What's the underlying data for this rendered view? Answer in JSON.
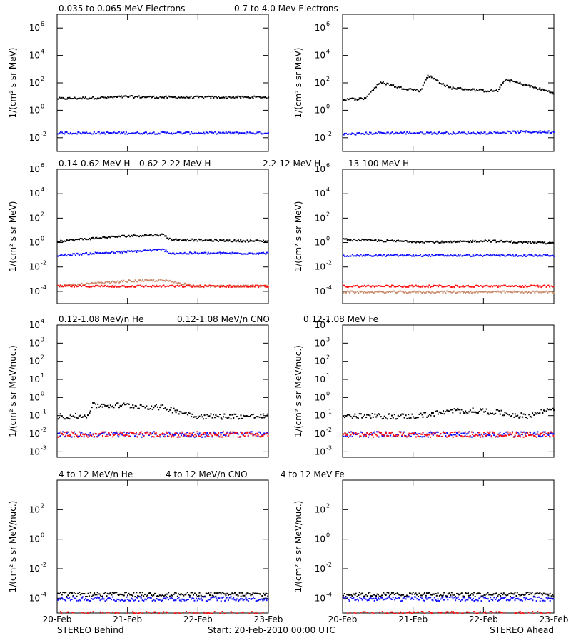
{
  "colors": {
    "black": "#000000",
    "blue": "#1010ff",
    "tan": "#c98b6b",
    "red": "#ff1010"
  },
  "rows": [
    {
      "labels": [
        {
          "text": "0.035 to 0.065 MeV Electrons",
          "color": "#000000"
        },
        {
          "text": "0.7 to 4.0 Mev Electrons",
          "color": "#1010ff"
        }
      ],
      "ylabel": "1/(cm² s sr MeV)",
      "ylim_exp": [
        -3,
        7
      ],
      "ticks": [
        {
          "base": "10",
          "exp": "6",
          "e": 6
        },
        {
          "base": "10",
          "exp": "4",
          "e": 4
        },
        {
          "base": "10",
          "exp": "2",
          "e": 2
        },
        {
          "base": "10",
          "exp": "0",
          "e": 0
        },
        {
          "base": "10",
          "exp": "-2",
          "e": -2
        }
      ]
    },
    {
      "labels": [
        {
          "text": "0.14-0.62 MeV H",
          "color": "#000000"
        },
        {
          "text": "0.62-2.22 MeV H",
          "color": "#1010ff"
        },
        {
          "text": "2.2-12 MeV H",
          "color": "#c98b6b"
        },
        {
          "text": "13-100 MeV H",
          "color": "#ff1010"
        }
      ],
      "ylabel": "1/(cm² s sr MeV)",
      "ylim_exp": [
        -5,
        6
      ],
      "ticks": [
        {
          "base": "10",
          "exp": "6",
          "e": 6
        },
        {
          "base": "10",
          "exp": "4",
          "e": 4
        },
        {
          "base": "10",
          "exp": "2",
          "e": 2
        },
        {
          "base": "10",
          "exp": "0",
          "e": 0
        },
        {
          "base": "10",
          "exp": "-2",
          "e": -2
        },
        {
          "base": "10",
          "exp": "-4",
          "e": -4
        }
      ]
    },
    {
      "labels": [
        {
          "text": "0.12-1.08 MeV/n He",
          "color": "#000000"
        },
        {
          "text": "0.12-1.08 MeV/n CNO",
          "color": "#1010ff"
        },
        {
          "text": "0.12-1.08 MeV Fe",
          "color": "#ff1010"
        }
      ],
      "ylabel": "1/(cm² s sr MeV/nuc.)",
      "ylim_exp": [
        -3.3,
        4
      ],
      "ticks": [
        {
          "base": "10",
          "exp": "4",
          "e": 4
        },
        {
          "base": "10",
          "exp": "3",
          "e": 3
        },
        {
          "base": "10",
          "exp": "2",
          "e": 2
        },
        {
          "base": "10",
          "exp": "1",
          "e": 1
        },
        {
          "base": "10",
          "exp": "0",
          "e": 0
        },
        {
          "base": "10",
          "exp": "-1",
          "e": -1
        },
        {
          "base": "10",
          "exp": "-2",
          "e": -2
        },
        {
          "base": "10",
          "exp": "-3",
          "e": -3
        }
      ]
    },
    {
      "labels": [
        {
          "text": "4 to 12 MeV/n He",
          "color": "#000000"
        },
        {
          "text": "4 to 12 MeV/n CNO",
          "color": "#1010ff"
        },
        {
          "text": "4 to 12 MeV Fe",
          "color": "#ff1010"
        }
      ],
      "ylabel": "1/(cm² s sr MeV/nuc.)",
      "ylim_exp": [
        -5,
        4
      ],
      "ticks": [
        {
          "base": "10",
          "exp": "2",
          "e": 2
        },
        {
          "base": "10",
          "exp": "0",
          "e": 0
        },
        {
          "base": "10",
          "exp": "-2",
          "e": -2
        },
        {
          "base": "10",
          "exp": "-4",
          "e": -4
        }
      ]
    }
  ],
  "x_ticks": [
    "20-Feb",
    "21-Feb",
    "22-Feb",
    "23-Feb"
  ],
  "footer": {
    "left": "STEREO Behind",
    "center": "Start: 20-Feb-2010 00:00 UTC",
    "right": "STEREO Ahead"
  },
  "chart_data": [
    {
      "type": "scatter",
      "panel": "electrons-behind",
      "xlim_days": [
        0,
        3
      ],
      "ylog": true,
      "series": [
        {
          "name": "0.035 to 0.065 MeV Electrons",
          "color": "#000000",
          "x": [
            0,
            0.5,
            1,
            1.5,
            2,
            2.5,
            3
          ],
          "y": [
            8,
            9,
            11,
            10,
            10,
            10,
            10
          ]
        },
        {
          "name": "0.7 to 4.0 Mev Electrons",
          "color": "#1010ff",
          "x": [
            0,
            0.5,
            1,
            1.5,
            2,
            2.5,
            3
          ],
          "y": [
            0.025,
            0.025,
            0.025,
            0.025,
            0.025,
            0.025,
            0.025
          ]
        }
      ]
    },
    {
      "type": "scatter",
      "panel": "electrons-ahead",
      "xlim_days": [
        0,
        3
      ],
      "ylog": true,
      "series": [
        {
          "name": "0.035 to 0.065 MeV Electrons",
          "color": "#000000",
          "x": [
            0,
            0.3,
            0.5,
            0.55,
            0.8,
            1.1,
            1.2,
            1.5,
            2,
            2.2,
            2.3,
            3
          ],
          "y": [
            7,
            8,
            90,
            120,
            50,
            30,
            400,
            50,
            30,
            30,
            200,
            20
          ]
        },
        {
          "name": "0.7 to 4.0 Mev Electrons",
          "color": "#1010ff",
          "x": [
            0,
            0.5,
            1,
            1.5,
            2,
            2.5,
            3
          ],
          "y": [
            0.02,
            0.025,
            0.025,
            0.025,
            0.025,
            0.03,
            0.03
          ]
        }
      ]
    },
    {
      "type": "scatter",
      "panel": "protons-behind",
      "xlim_days": [
        0,
        3
      ],
      "ylog": true,
      "series": [
        {
          "name": "0.14-0.62 MeV H",
          "color": "#000000",
          "x": [
            0,
            0.5,
            1,
            1.5,
            1.6,
            2,
            2.5,
            3
          ],
          "y": [
            1.5,
            2.5,
            4,
            5,
            2,
            1.8,
            1.6,
            1.5
          ]
        },
        {
          "name": "0.62-2.22 MeV H",
          "color": "#1010ff",
          "x": [
            0,
            0.5,
            1,
            1.5,
            1.6,
            2,
            2.5,
            3
          ],
          "y": [
            0.1,
            0.15,
            0.2,
            0.3,
            0.15,
            0.15,
            0.15,
            0.15
          ]
        },
        {
          "name": "2.2-12 MeV H",
          "color": "#c98b6b",
          "x": [
            0,
            0.5,
            1,
            1.5,
            2,
            3
          ],
          "y": [
            0.0003,
            0.0005,
            0.0008,
            0.0009,
            0.0003,
            0.0003
          ]
        },
        {
          "name": "13-100 MeV H",
          "color": "#ff1010",
          "x": [
            0,
            1,
            2,
            3
          ],
          "y": [
            0.0003,
            0.0003,
            0.0003,
            0.0003
          ]
        }
      ]
    },
    {
      "type": "scatter",
      "panel": "protons-ahead",
      "xlim_days": [
        0,
        3
      ],
      "ylog": true,
      "series": [
        {
          "name": "0.14-0.62 MeV H",
          "color": "#000000",
          "x": [
            0,
            0.5,
            1,
            1.5,
            2,
            2.5,
            3
          ],
          "y": [
            2,
            1.6,
            1.4,
            1.2,
            1.6,
            1.2,
            1
          ]
        },
        {
          "name": "0.62-2.22 MeV H",
          "color": "#1010ff",
          "x": [
            0,
            1,
            2,
            3
          ],
          "y": [
            0.1,
            0.1,
            0.1,
            0.1
          ]
        },
        {
          "name": "2.2-12 MeV H",
          "color": "#c98b6b",
          "x": [
            0,
            1,
            2,
            3
          ],
          "y": [
            0.0001,
            0.0001,
            0.0001,
            0.0001
          ]
        },
        {
          "name": "13-100 MeV H",
          "color": "#ff1010",
          "x": [
            0,
            1,
            2,
            3
          ],
          "y": [
            0.0003,
            0.0003,
            0.0003,
            0.0003
          ]
        }
      ]
    },
    {
      "type": "scatter",
      "panel": "he-cno-fe-low-behind",
      "xlim_days": [
        0,
        3
      ],
      "ylog": true,
      "series": [
        {
          "name": "0.12-1.08 MeV/n He",
          "color": "#000000",
          "x": [
            0,
            0.4,
            0.5,
            1,
            1.5,
            2,
            2.5,
            3
          ],
          "y": [
            0.1,
            0.1,
            0.4,
            0.4,
            0.3,
            0.1,
            0.1,
            0.1
          ]
        },
        {
          "name": "0.12-1.08 MeV/n CNO",
          "color": "#1010ff",
          "x": [
            0,
            1,
            2,
            3
          ],
          "y": [
            0.01,
            0.01,
            0.01,
            0.01
          ]
        },
        {
          "name": "0.12-1.08 MeV Fe",
          "color": "#ff1010",
          "x": [
            0,
            1,
            2,
            3
          ],
          "y": [
            0.01,
            0.01,
            0.01,
            0.01
          ]
        }
      ]
    },
    {
      "type": "scatter",
      "panel": "he-cno-fe-low-ahead",
      "xlim_days": [
        0,
        3
      ],
      "ylog": true,
      "series": [
        {
          "name": "0.12-1.08 MeV/n He",
          "color": "#000000",
          "x": [
            0,
            1,
            1.6,
            2,
            2.6,
            3
          ],
          "y": [
            0.1,
            0.1,
            0.2,
            0.2,
            0.1,
            0.3
          ]
        },
        {
          "name": "0.12-1.08 MeV/n CNO",
          "color": "#1010ff",
          "x": [
            0,
            1,
            2,
            3
          ],
          "y": [
            0.01,
            0.01,
            0.01,
            0.01
          ]
        },
        {
          "name": "0.12-1.08 MeV Fe",
          "color": "#ff1010",
          "x": [
            0,
            1,
            2,
            3
          ],
          "y": [
            0.01,
            0.01,
            0.01,
            0.01
          ]
        }
      ]
    },
    {
      "type": "scatter",
      "panel": "he-cno-fe-high-behind",
      "xlim_days": [
        0,
        3
      ],
      "ylog": true,
      "series": [
        {
          "name": "4 to 12 MeV/n He",
          "color": "#000000",
          "x": [
            0,
            1,
            2,
            3
          ],
          "y": [
            0.0002,
            0.0002,
            0.0002,
            0.0002
          ]
        },
        {
          "name": "4 to 12 MeV/n CNO",
          "color": "#1010ff",
          "x": [
            0,
            1,
            2,
            3
          ],
          "y": [
            0.0001,
            0.0001,
            0.0001,
            0.0001
          ]
        },
        {
          "name": "4 to 12 MeV Fe",
          "color": "#ff1010",
          "x": [
            0,
            1,
            2,
            3
          ],
          "y": [
            1e-05,
            1e-05,
            1e-05,
            1e-05
          ]
        }
      ]
    },
    {
      "type": "scatter",
      "panel": "he-cno-fe-high-ahead",
      "xlim_days": [
        0,
        3
      ],
      "ylog": true,
      "series": [
        {
          "name": "4 to 12 MeV/n He",
          "color": "#000000",
          "x": [
            0,
            1,
            2,
            3
          ],
          "y": [
            0.0002,
            0.0002,
            0.0002,
            0.0002
          ]
        },
        {
          "name": "4 to 12 MeV/n CNO",
          "color": "#1010ff",
          "x": [
            0,
            1,
            2,
            3
          ],
          "y": [
            0.0001,
            0.0001,
            0.0001,
            0.0001
          ]
        },
        {
          "name": "4 to 12 MeV Fe",
          "color": "#ff1010",
          "x": [
            0,
            1,
            2,
            3
          ],
          "y": [
            1e-05,
            1e-05,
            1e-05,
            1e-05
          ]
        }
      ]
    }
  ]
}
